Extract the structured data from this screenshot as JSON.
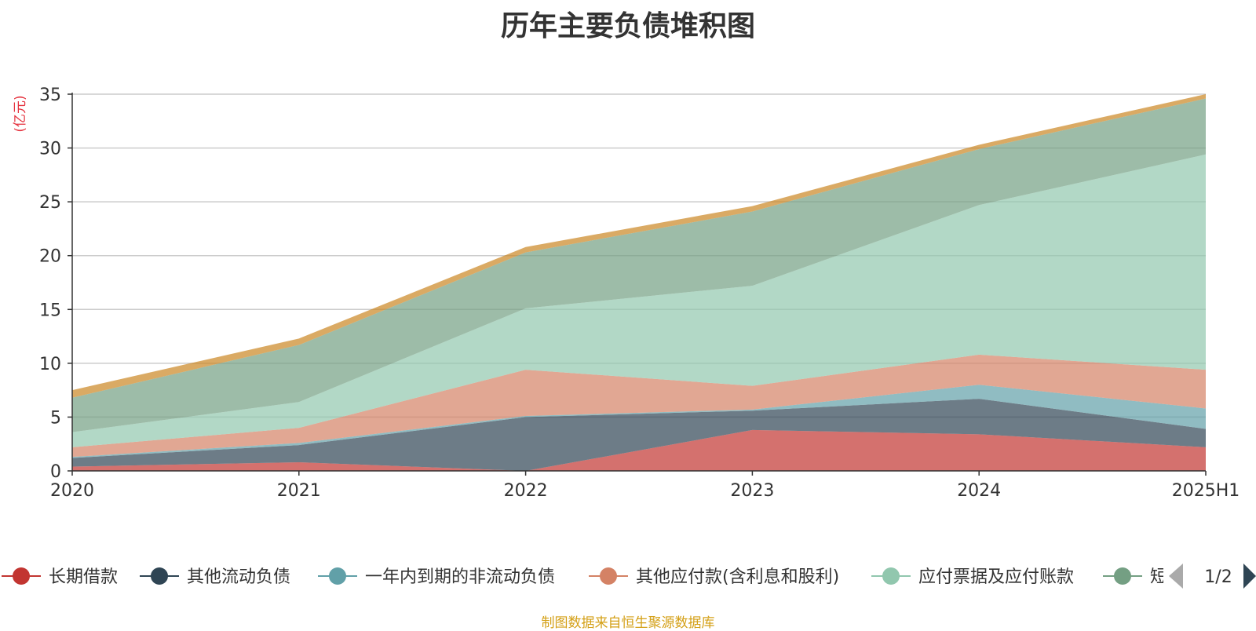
{
  "chart_data": {
    "type": "area",
    "stacked": true,
    "title": "历年主要负债堆积图",
    "ylabel": "(亿元)",
    "xlabel": "",
    "categories": [
      "2020",
      "2021",
      "2022",
      "2023",
      "2024",
      "2025H1"
    ],
    "ylim": [
      0,
      35
    ],
    "yticks": [
      0,
      5,
      10,
      15,
      20,
      25,
      30,
      35
    ],
    "grid": true,
    "legend_position": "bottom",
    "series": [
      {
        "name": "长期借款",
        "color": "#c23531",
        "values": [
          0.4,
          0.8,
          0.0,
          3.8,
          3.4,
          2.2
        ]
      },
      {
        "name": "其他流动负债",
        "color": "#2f4554",
        "values": [
          0.8,
          1.6,
          5.0,
          1.8,
          3.3,
          1.7
        ]
      },
      {
        "name": "一年内到期的非流动负债",
        "color": "#61a0a8",
        "values": [
          0.1,
          0.2,
          0.1,
          0.1,
          1.3,
          1.9
        ]
      },
      {
        "name": "其他应付款(含利息和股利)",
        "color": "#d48265",
        "values": [
          0.9,
          1.4,
          4.3,
          2.2,
          2.8,
          3.6
        ]
      },
      {
        "name": "应付票据及应付账款",
        "color": "#91c7ae",
        "values": [
          1.4,
          2.4,
          5.7,
          9.3,
          13.9,
          20.0
        ]
      },
      {
        "name": "短期借款",
        "color": "#749f83",
        "values": [
          3.2,
          5.3,
          5.2,
          6.9,
          5.2,
          5.2
        ]
      },
      {
        "name": "",
        "color": "#ca8622",
        "values": [
          0.7,
          0.6,
          0.5,
          0.5,
          0.4,
          0.4
        ]
      }
    ]
  },
  "legend": {
    "page": "1/2",
    "visible_labels": [
      "长期借款",
      "其他流动负债",
      "一年内到期的非流动负债",
      "其他应付款(含利息和股利)",
      "应付票据及应付账款",
      "短"
    ]
  },
  "source_note": "制图数据来自恒生聚源数据库"
}
